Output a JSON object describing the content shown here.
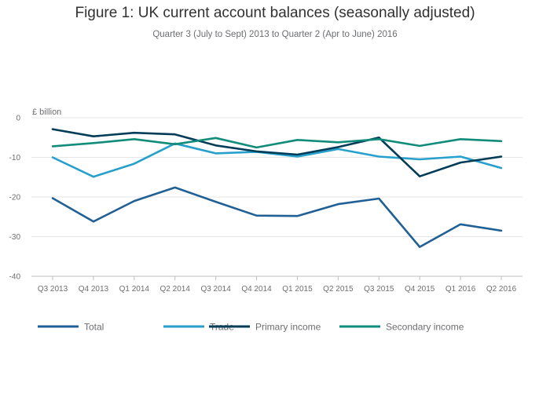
{
  "title": "Figure 1: UK current account balances (seasonally adjusted)",
  "subtitle": "Quarter 3 (July to Sept) 2013 to Quarter 2 (Apr to June) 2016",
  "chart_data": {
    "type": "line",
    "categories": [
      "Q3 2013",
      "Q4 2013",
      "Q1 2014",
      "Q2 2014",
      "Q3 2014",
      "Q4 2014",
      "Q1 2015",
      "Q2 2015",
      "Q3 2015",
      "Q4 2015",
      "Q1 2016",
      "Q2 2016"
    ],
    "unit_label": "£ billion",
    "ylim": [
      -40,
      0
    ],
    "yticks": [
      0,
      -10,
      -20,
      -30,
      -40
    ],
    "grid": true,
    "legend_position": "bottom",
    "series": [
      {
        "name": "Total",
        "color": "#206095",
        "values": [
          -20.3,
          -26.2,
          -21.0,
          -17.6,
          -21.2,
          -24.7,
          -24.8,
          -21.8,
          -20.4,
          -32.6,
          -26.9,
          -28.5
        ]
      },
      {
        "name": "Trade",
        "color": "#27a0cc",
        "values": [
          -10.0,
          -14.9,
          -11.6,
          -6.5,
          -9.0,
          -8.6,
          -9.8,
          -7.9,
          -9.8,
          -10.5,
          -9.8,
          -12.7
        ]
      },
      {
        "name": "Primary income",
        "color": "#003c57",
        "values": [
          -2.9,
          -4.7,
          -3.8,
          -4.2,
          -7.0,
          -8.5,
          -9.3,
          -7.4,
          -5.0,
          -14.8,
          -11.3,
          -9.8
        ]
      },
      {
        "name": "Secondary income",
        "color": "#118c7b",
        "values": [
          -7.2,
          -6.4,
          -5.4,
          -6.7,
          -5.1,
          -7.5,
          -5.6,
          -6.2,
          -5.4,
          -7.1,
          -5.4,
          -5.9
        ]
      }
    ]
  }
}
